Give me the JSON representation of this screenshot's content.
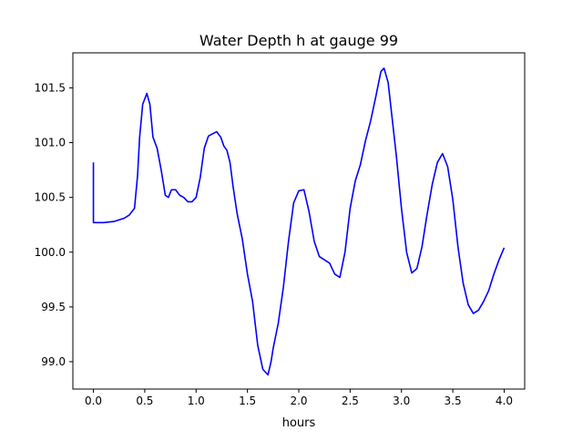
{
  "chart_data": {
    "type": "line",
    "title": "Water Depth h at gauge 99",
    "xlabel": "hours",
    "ylabel": "",
    "xlim": [
      -0.2,
      4.2
    ],
    "ylim": [
      98.75,
      101.82
    ],
    "xticks": [
      0.0,
      0.5,
      1.0,
      1.5,
      2.0,
      2.5,
      3.0,
      3.5,
      4.0
    ],
    "xtick_labels": [
      "0.0",
      "0.5",
      "1.0",
      "1.5",
      "2.0",
      "2.5",
      "3.0",
      "3.5",
      "4.0"
    ],
    "yticks": [
      99.0,
      99.5,
      100.0,
      100.5,
      101.0,
      101.5
    ],
    "ytick_labels": [
      "99.0",
      "99.5",
      "100.0",
      "100.5",
      "101.0",
      "101.5"
    ],
    "grid": false,
    "legend": "none",
    "series": [
      {
        "color": "#0000ff",
        "x": [
          0.0,
          0.0,
          0.1,
          0.2,
          0.3,
          0.35,
          0.4,
          0.43,
          0.45,
          0.48,
          0.52,
          0.55,
          0.58,
          0.62,
          0.66,
          0.7,
          0.73,
          0.76,
          0.8,
          0.84,
          0.88,
          0.92,
          0.96,
          1.0,
          1.04,
          1.08,
          1.12,
          1.16,
          1.2,
          1.24,
          1.27,
          1.3,
          1.33,
          1.36,
          1.4,
          1.45,
          1.5,
          1.55,
          1.6,
          1.65,
          1.7,
          1.73,
          1.75,
          1.8,
          1.85,
          1.9,
          1.95,
          2.0,
          2.05,
          2.1,
          2.15,
          2.2,
          2.25,
          2.3,
          2.35,
          2.4,
          2.45,
          2.5,
          2.55,
          2.6,
          2.65,
          2.7,
          2.75,
          2.8,
          2.83,
          2.87,
          2.9,
          2.95,
          3.0,
          3.05,
          3.1,
          3.15,
          3.2,
          3.25,
          3.3,
          3.35,
          3.4,
          3.45,
          3.5,
          3.55,
          3.6,
          3.65,
          3.7,
          3.75,
          3.8,
          3.85,
          3.9,
          3.95,
          4.0
        ],
        "y": [
          100.82,
          100.27,
          100.27,
          100.28,
          100.31,
          100.34,
          100.4,
          100.7,
          101.05,
          101.35,
          101.45,
          101.35,
          101.05,
          100.95,
          100.75,
          100.52,
          100.5,
          100.57,
          100.57,
          100.52,
          100.5,
          100.46,
          100.46,
          100.5,
          100.68,
          100.95,
          101.06,
          101.08,
          101.1,
          101.05,
          100.97,
          100.93,
          100.82,
          100.6,
          100.35,
          100.12,
          99.8,
          99.55,
          99.15,
          98.93,
          98.88,
          99.0,
          99.12,
          99.35,
          99.68,
          100.1,
          100.45,
          100.56,
          100.57,
          100.37,
          100.1,
          99.96,
          99.93,
          99.9,
          99.8,
          99.77,
          100.0,
          100.4,
          100.65,
          100.8,
          101.02,
          101.2,
          101.42,
          101.65,
          101.68,
          101.55,
          101.3,
          100.88,
          100.4,
          100.0,
          99.81,
          99.85,
          100.05,
          100.35,
          100.62,
          100.82,
          100.9,
          100.78,
          100.48,
          100.05,
          99.72,
          99.52,
          99.44,
          99.47,
          99.55,
          99.65,
          99.8,
          99.93,
          100.04
        ]
      }
    ]
  }
}
